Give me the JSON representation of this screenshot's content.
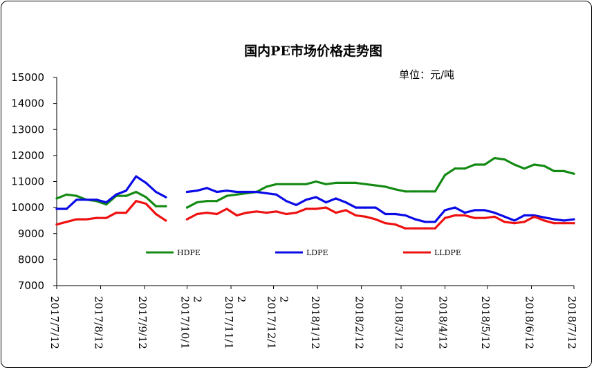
{
  "chart_data": {
    "type": "line",
    "title": "国内PE市场价格走势图",
    "unit": "单位：元/吨",
    "xlabel": "",
    "ylabel": "",
    "ylim": [
      7000,
      15000
    ],
    "yticks": [
      7000,
      8000,
      9000,
      10000,
      11000,
      12000,
      13000,
      14000,
      15000
    ],
    "grid": false,
    "legend_position": "bottom-inside",
    "x_ticks": [
      {
        "date": "2017-07-12",
        "label": [
          "2017/7/12"
        ]
      },
      {
        "date": "2017-08-12",
        "label": [
          "2017/8/12"
        ]
      },
      {
        "date": "2017-09-12",
        "label": [
          "2017/9/12"
        ]
      },
      {
        "date": "2017-10-12",
        "label": [
          "2017/10/1",
          "2"
        ]
      },
      {
        "date": "2017-11-12",
        "label": [
          "2017/11/1",
          "2"
        ]
      },
      {
        "date": "2017-12-12",
        "label": [
          "2017/12/1",
          "2"
        ]
      },
      {
        "date": "2018-01-12",
        "label": [
          "2018/1/12"
        ]
      },
      {
        "date": "2018-02-12",
        "label": [
          "2018/2/12"
        ]
      },
      {
        "date": "2018-03-12",
        "label": [
          "2018/3/12"
        ]
      },
      {
        "date": "2018-04-12",
        "label": [
          "2018/4/12"
        ]
      },
      {
        "date": "2018-05-12",
        "label": [
          "2018/5/12"
        ]
      },
      {
        "date": "2018-06-12",
        "label": [
          "2018/6/12"
        ]
      },
      {
        "date": "2018-07-12",
        "label": [
          "2018/7/12"
        ]
      }
    ],
    "series": [
      {
        "name": "HDPE",
        "color": "#138a13",
        "segments": [
          [
            [
              "2017-07-12",
              10350
            ],
            [
              "2017-07-19",
              10500
            ],
            [
              "2017-07-26",
              10450
            ],
            [
              "2017-08-02",
              10300
            ],
            [
              "2017-08-09",
              10250
            ],
            [
              "2017-08-16",
              10120
            ],
            [
              "2017-08-23",
              10450
            ],
            [
              "2017-08-30",
              10450
            ],
            [
              "2017-09-06",
              10600
            ],
            [
              "2017-09-13",
              10400
            ],
            [
              "2017-09-20",
              10050
            ],
            [
              "2017-09-27",
              10050
            ]
          ],
          [
            [
              "2017-10-12",
              10000
            ],
            [
              "2017-10-19",
              10200
            ],
            [
              "2017-10-26",
              10250
            ],
            [
              "2017-11-02",
              10250
            ],
            [
              "2017-11-09",
              10450
            ],
            [
              "2017-11-16",
              10500
            ],
            [
              "2017-11-23",
              10550
            ],
            [
              "2017-11-30",
              10600
            ],
            [
              "2017-12-07",
              10800
            ],
            [
              "2017-12-14",
              10900
            ],
            [
              "2017-12-21",
              10900
            ],
            [
              "2017-12-28",
              10900
            ],
            [
              "2018-01-04",
              10900
            ],
            [
              "2018-01-11",
              11000
            ],
            [
              "2018-01-18",
              10900
            ],
            [
              "2018-01-25",
              10950
            ],
            [
              "2018-02-01",
              10950
            ],
            [
              "2018-02-08",
              10950
            ],
            [
              "2018-02-15",
              10900
            ],
            [
              "2018-02-22",
              10850
            ],
            [
              "2018-03-01",
              10800
            ],
            [
              "2018-03-08",
              10700
            ],
            [
              "2018-03-15",
              10620
            ],
            [
              "2018-03-22",
              10620
            ],
            [
              "2018-03-29",
              10620
            ],
            [
              "2018-04-05",
              10620
            ],
            [
              "2018-04-12",
              11250
            ],
            [
              "2018-04-19",
              11500
            ],
            [
              "2018-04-26",
              11500
            ],
            [
              "2018-05-03",
              11650
            ],
            [
              "2018-05-10",
              11650
            ],
            [
              "2018-05-17",
              11900
            ],
            [
              "2018-05-24",
              11850
            ],
            [
              "2018-05-31",
              11650
            ],
            [
              "2018-06-07",
              11500
            ],
            [
              "2018-06-14",
              11650
            ],
            [
              "2018-06-21",
              11600
            ],
            [
              "2018-06-28",
              11400
            ],
            [
              "2018-07-05",
              11400
            ],
            [
              "2018-07-12",
              11300
            ]
          ]
        ]
      },
      {
        "name": "LDPE",
        "color": "#0a0ae6",
        "segments": [
          [
            [
              "2017-07-12",
              9950
            ],
            [
              "2017-07-19",
              9950
            ],
            [
              "2017-07-26",
              10300
            ],
            [
              "2017-08-02",
              10300
            ],
            [
              "2017-08-09",
              10300
            ],
            [
              "2017-08-16",
              10200
            ],
            [
              "2017-08-23",
              10500
            ],
            [
              "2017-08-30",
              10650
            ],
            [
              "2017-09-06",
              11200
            ],
            [
              "2017-09-13",
              10950
            ],
            [
              "2017-09-20",
              10600
            ],
            [
              "2017-09-27",
              10400
            ]
          ],
          [
            [
              "2017-10-12",
              10600
            ],
            [
              "2017-10-19",
              10650
            ],
            [
              "2017-10-26",
              10750
            ],
            [
              "2017-11-02",
              10600
            ],
            [
              "2017-11-09",
              10650
            ],
            [
              "2017-11-16",
              10600
            ],
            [
              "2017-11-23",
              10600
            ],
            [
              "2017-11-30",
              10600
            ],
            [
              "2017-12-07",
              10550
            ],
            [
              "2017-12-14",
              10500
            ],
            [
              "2017-12-21",
              10250
            ],
            [
              "2017-12-28",
              10100
            ],
            [
              "2018-01-04",
              10300
            ],
            [
              "2018-01-11",
              10400
            ],
            [
              "2018-01-18",
              10200
            ],
            [
              "2018-01-25",
              10350
            ],
            [
              "2018-02-01",
              10200
            ],
            [
              "2018-02-08",
              10000
            ],
            [
              "2018-02-15",
              10000
            ],
            [
              "2018-02-22",
              10000
            ],
            [
              "2018-03-01",
              9750
            ],
            [
              "2018-03-08",
              9750
            ],
            [
              "2018-03-15",
              9700
            ],
            [
              "2018-03-22",
              9550
            ],
            [
              "2018-03-29",
              9450
            ],
            [
              "2018-04-05",
              9450
            ],
            [
              "2018-04-12",
              9900
            ],
            [
              "2018-04-19",
              10000
            ],
            [
              "2018-04-26",
              9800
            ],
            [
              "2018-05-03",
              9900
            ],
            [
              "2018-05-10",
              9900
            ],
            [
              "2018-05-17",
              9800
            ],
            [
              "2018-05-24",
              9650
            ],
            [
              "2018-05-31",
              9500
            ],
            [
              "2018-06-07",
              9700
            ],
            [
              "2018-06-14",
              9700
            ],
            [
              "2018-06-21",
              9620
            ],
            [
              "2018-06-28",
              9550
            ],
            [
              "2018-07-05",
              9500
            ],
            [
              "2018-07-12",
              9550
            ]
          ]
        ]
      },
      {
        "name": "LLDPE",
        "color": "#ee1111",
        "segments": [
          [
            [
              "2017-07-12",
              9350
            ],
            [
              "2017-07-19",
              9450
            ],
            [
              "2017-07-26",
              9550
            ],
            [
              "2017-08-02",
              9550
            ],
            [
              "2017-08-09",
              9600
            ],
            [
              "2017-08-16",
              9600
            ],
            [
              "2017-08-23",
              9800
            ],
            [
              "2017-08-30",
              9800
            ],
            [
              "2017-09-06",
              10250
            ],
            [
              "2017-09-13",
              10150
            ],
            [
              "2017-09-20",
              9750
            ],
            [
              "2017-09-27",
              9500
            ]
          ],
          [
            [
              "2017-10-12",
              9550
            ],
            [
              "2017-10-19",
              9750
            ],
            [
              "2017-10-26",
              9800
            ],
            [
              "2017-11-02",
              9750
            ],
            [
              "2017-11-09",
              9950
            ],
            [
              "2017-11-16",
              9700
            ],
            [
              "2017-11-23",
              9800
            ],
            [
              "2017-11-30",
              9850
            ],
            [
              "2017-12-07",
              9800
            ],
            [
              "2017-12-14",
              9850
            ],
            [
              "2017-12-21",
              9750
            ],
            [
              "2017-12-28",
              9800
            ],
            [
              "2018-01-04",
              9950
            ],
            [
              "2018-01-11",
              9950
            ],
            [
              "2018-01-18",
              10000
            ],
            [
              "2018-01-25",
              9800
            ],
            [
              "2018-02-01",
              9900
            ],
            [
              "2018-02-08",
              9700
            ],
            [
              "2018-02-15",
              9650
            ],
            [
              "2018-02-22",
              9550
            ],
            [
              "2018-03-01",
              9400
            ],
            [
              "2018-03-08",
              9350
            ],
            [
              "2018-03-15",
              9200
            ],
            [
              "2018-03-22",
              9200
            ],
            [
              "2018-03-29",
              9200
            ],
            [
              "2018-04-05",
              9200
            ],
            [
              "2018-04-12",
              9600
            ],
            [
              "2018-04-19",
              9700
            ],
            [
              "2018-04-26",
              9700
            ],
            [
              "2018-05-03",
              9600
            ],
            [
              "2018-05-10",
              9600
            ],
            [
              "2018-05-17",
              9650
            ],
            [
              "2018-05-24",
              9450
            ],
            [
              "2018-05-31",
              9400
            ],
            [
              "2018-06-07",
              9450
            ],
            [
              "2018-06-14",
              9650
            ],
            [
              "2018-06-21",
              9500
            ],
            [
              "2018-06-28",
              9400
            ],
            [
              "2018-07-05",
              9400
            ],
            [
              "2018-07-12",
              9400
            ]
          ]
        ]
      }
    ]
  }
}
